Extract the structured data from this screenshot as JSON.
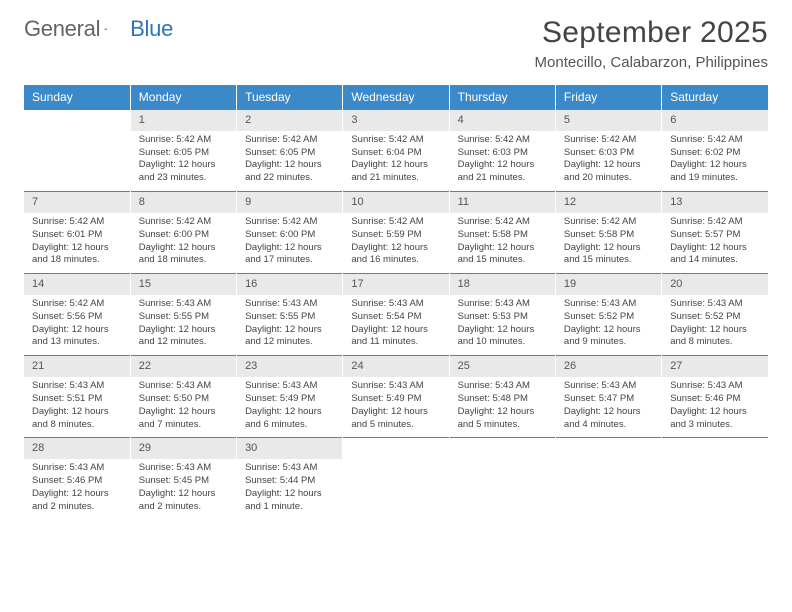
{
  "logo": {
    "text1": "General",
    "text2": "Blue"
  },
  "title": "September 2025",
  "subtitle": "Montecillo, Calabarzon, Philippines",
  "colors": {
    "header_bg": "#3b89c9",
    "daynum_bg": "#e9e9e9",
    "row_border": "#3b89c9",
    "logo_blue": "#2c75b8"
  },
  "table": {
    "type": "calendar-grid",
    "columns": [
      "Sunday",
      "Monday",
      "Tuesday",
      "Wednesday",
      "Thursday",
      "Friday",
      "Saturday"
    ],
    "weeks": [
      [
        null,
        {
          "n": "1",
          "sr": "Sunrise: 5:42 AM",
          "ss": "Sunset: 6:05 PM",
          "dl": "Daylight: 12 hours and 23 minutes."
        },
        {
          "n": "2",
          "sr": "Sunrise: 5:42 AM",
          "ss": "Sunset: 6:05 PM",
          "dl": "Daylight: 12 hours and 22 minutes."
        },
        {
          "n": "3",
          "sr": "Sunrise: 5:42 AM",
          "ss": "Sunset: 6:04 PM",
          "dl": "Daylight: 12 hours and 21 minutes."
        },
        {
          "n": "4",
          "sr": "Sunrise: 5:42 AM",
          "ss": "Sunset: 6:03 PM",
          "dl": "Daylight: 12 hours and 21 minutes."
        },
        {
          "n": "5",
          "sr": "Sunrise: 5:42 AM",
          "ss": "Sunset: 6:03 PM",
          "dl": "Daylight: 12 hours and 20 minutes."
        },
        {
          "n": "6",
          "sr": "Sunrise: 5:42 AM",
          "ss": "Sunset: 6:02 PM",
          "dl": "Daylight: 12 hours and 19 minutes."
        }
      ],
      [
        {
          "n": "7",
          "sr": "Sunrise: 5:42 AM",
          "ss": "Sunset: 6:01 PM",
          "dl": "Daylight: 12 hours and 18 minutes."
        },
        {
          "n": "8",
          "sr": "Sunrise: 5:42 AM",
          "ss": "Sunset: 6:00 PM",
          "dl": "Daylight: 12 hours and 18 minutes."
        },
        {
          "n": "9",
          "sr": "Sunrise: 5:42 AM",
          "ss": "Sunset: 6:00 PM",
          "dl": "Daylight: 12 hours and 17 minutes."
        },
        {
          "n": "10",
          "sr": "Sunrise: 5:42 AM",
          "ss": "Sunset: 5:59 PM",
          "dl": "Daylight: 12 hours and 16 minutes."
        },
        {
          "n": "11",
          "sr": "Sunrise: 5:42 AM",
          "ss": "Sunset: 5:58 PM",
          "dl": "Daylight: 12 hours and 15 minutes."
        },
        {
          "n": "12",
          "sr": "Sunrise: 5:42 AM",
          "ss": "Sunset: 5:58 PM",
          "dl": "Daylight: 12 hours and 15 minutes."
        },
        {
          "n": "13",
          "sr": "Sunrise: 5:42 AM",
          "ss": "Sunset: 5:57 PM",
          "dl": "Daylight: 12 hours and 14 minutes."
        }
      ],
      [
        {
          "n": "14",
          "sr": "Sunrise: 5:42 AM",
          "ss": "Sunset: 5:56 PM",
          "dl": "Daylight: 12 hours and 13 minutes."
        },
        {
          "n": "15",
          "sr": "Sunrise: 5:43 AM",
          "ss": "Sunset: 5:55 PM",
          "dl": "Daylight: 12 hours and 12 minutes."
        },
        {
          "n": "16",
          "sr": "Sunrise: 5:43 AM",
          "ss": "Sunset: 5:55 PM",
          "dl": "Daylight: 12 hours and 12 minutes."
        },
        {
          "n": "17",
          "sr": "Sunrise: 5:43 AM",
          "ss": "Sunset: 5:54 PM",
          "dl": "Daylight: 12 hours and 11 minutes."
        },
        {
          "n": "18",
          "sr": "Sunrise: 5:43 AM",
          "ss": "Sunset: 5:53 PM",
          "dl": "Daylight: 12 hours and 10 minutes."
        },
        {
          "n": "19",
          "sr": "Sunrise: 5:43 AM",
          "ss": "Sunset: 5:52 PM",
          "dl": "Daylight: 12 hours and 9 minutes."
        },
        {
          "n": "20",
          "sr": "Sunrise: 5:43 AM",
          "ss": "Sunset: 5:52 PM",
          "dl": "Daylight: 12 hours and 8 minutes."
        }
      ],
      [
        {
          "n": "21",
          "sr": "Sunrise: 5:43 AM",
          "ss": "Sunset: 5:51 PM",
          "dl": "Daylight: 12 hours and 8 minutes."
        },
        {
          "n": "22",
          "sr": "Sunrise: 5:43 AM",
          "ss": "Sunset: 5:50 PM",
          "dl": "Daylight: 12 hours and 7 minutes."
        },
        {
          "n": "23",
          "sr": "Sunrise: 5:43 AM",
          "ss": "Sunset: 5:49 PM",
          "dl": "Daylight: 12 hours and 6 minutes."
        },
        {
          "n": "24",
          "sr": "Sunrise: 5:43 AM",
          "ss": "Sunset: 5:49 PM",
          "dl": "Daylight: 12 hours and 5 minutes."
        },
        {
          "n": "25",
          "sr": "Sunrise: 5:43 AM",
          "ss": "Sunset: 5:48 PM",
          "dl": "Daylight: 12 hours and 5 minutes."
        },
        {
          "n": "26",
          "sr": "Sunrise: 5:43 AM",
          "ss": "Sunset: 5:47 PM",
          "dl": "Daylight: 12 hours and 4 minutes."
        },
        {
          "n": "27",
          "sr": "Sunrise: 5:43 AM",
          "ss": "Sunset: 5:46 PM",
          "dl": "Daylight: 12 hours and 3 minutes."
        }
      ],
      [
        {
          "n": "28",
          "sr": "Sunrise: 5:43 AM",
          "ss": "Sunset: 5:46 PM",
          "dl": "Daylight: 12 hours and 2 minutes."
        },
        {
          "n": "29",
          "sr": "Sunrise: 5:43 AM",
          "ss": "Sunset: 5:45 PM",
          "dl": "Daylight: 12 hours and 2 minutes."
        },
        {
          "n": "30",
          "sr": "Sunrise: 5:43 AM",
          "ss": "Sunset: 5:44 PM",
          "dl": "Daylight: 12 hours and 1 minute."
        },
        null,
        null,
        null,
        null
      ]
    ]
  }
}
